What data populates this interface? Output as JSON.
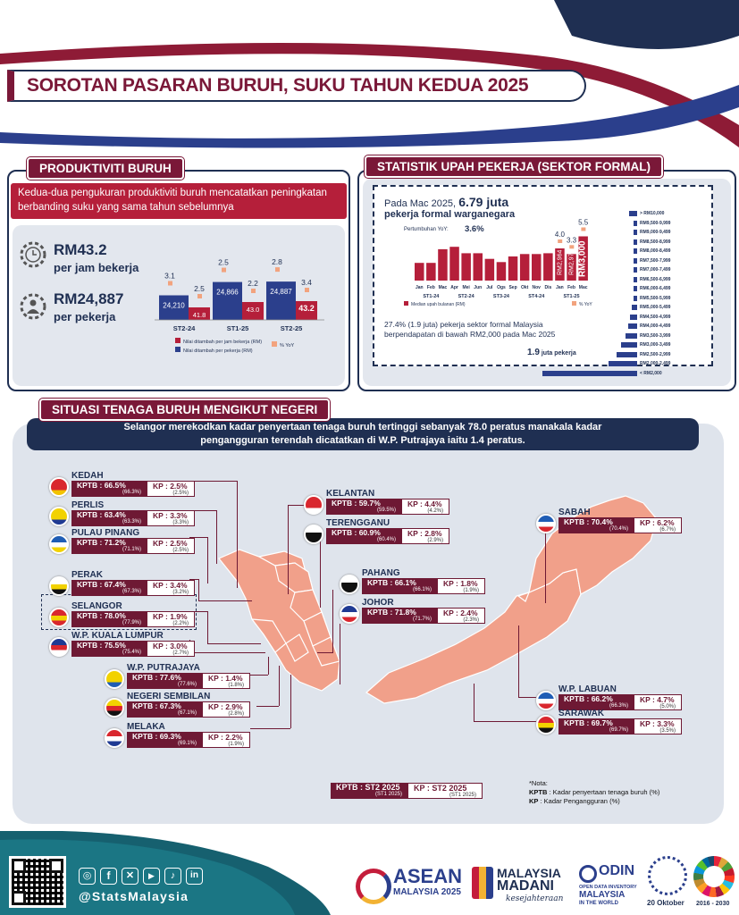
{
  "title": "SOROTAN PASARAN BURUH, SUKU TAHUN KEDUA 2025",
  "productivity": {
    "heading": "PRODUKTIVITI BURUH",
    "summary": "Kedua-dua pengukuran produktiviti buruh mencatatkan peningkatan berbanding suku yang sama tahun sebelumnya",
    "per_hour_value": "RM43.2",
    "per_hour_label": "per jam bekerja",
    "per_worker_value": "RM24,887",
    "per_worker_label": "per pekerja",
    "legend_hour": "Nilai ditambah per jam bekerja (RM)",
    "legend_worker": "Nilai ditambah per pekerja (RM)",
    "legend_yoy": "% YoY",
    "colors": {
      "worker": "#2b3f8c",
      "hour": "#b51f3a",
      "yoy": "#f2a37e"
    }
  },
  "chart_data": [
    {
      "type": "bar",
      "categories": [
        "ST2-24",
        "ST1-25",
        "ST2-25"
      ],
      "series": [
        {
          "name": "Nilai ditambah per pekerja (RM)",
          "values": [
            24210,
            24866,
            24887
          ],
          "labels": [
            "24,210",
            "24,866",
            "24,887"
          ],
          "yoy": [
            "3.1",
            "2.5",
            "2.8"
          ]
        },
        {
          "name": "Nilai ditambah per jam bekerja (RM)",
          "values": [
            41.8,
            43.0,
            43.2
          ],
          "labels": [
            "41.8",
            "43.0",
            "43.2"
          ],
          "yoy": [
            "2.5",
            "2.2",
            "3.4"
          ]
        }
      ]
    },
    {
      "type": "bar",
      "title": "Median upah bulanan (RM)",
      "categories": [
        "Jan",
        "Feb",
        "Mac",
        "Apr",
        "Mei",
        "Jun",
        "Jul",
        "Ogs",
        "Sep",
        "Okt",
        "Nov",
        "Dis",
        "Jan",
        "Feb",
        "Mac"
      ],
      "groups": [
        "ST1-24",
        "ST2-24",
        "ST3-24",
        "ST4-24",
        "ST1-25"
      ],
      "values": [
        2.2,
        2.2,
        3.9,
        4.2,
        3.4,
        3.4,
        2.7,
        2.3,
        3.0,
        3.3,
        3.3,
        3.4,
        4.0,
        3.3,
        5.5
      ],
      "value_labels": {
        "Jan-25": "RM2,964",
        "Feb-25": "RM2,975",
        "Mac-25": "RM3,000"
      },
      "yoy_labels": [
        "4.0",
        "3.3",
        "5.5"
      ],
      "yoy_legend": "Pertumbuhan YoY:",
      "yoy_value": "3.6%",
      "median_legend": "Median upah bulanan (RM)",
      "pct_legend": "% YoY"
    },
    {
      "type": "bar",
      "orientation": "horizontal",
      "categories": [
        "> RM10,000",
        "RM9,500-9,999",
        "RM9,000-9,499",
        "RM8,500-8,999",
        "RM8,000-8,499",
        "RM7,500-7,999",
        "RM7,000-7,499",
        "RM6,500-6,999",
        "RM6,000-6,499",
        "RM5,500-5,999",
        "RM5,000-5,499",
        "RM4,500-4,999",
        "RM4,000-4,499",
        "RM3,500-3,999",
        "RM3,000-3,499",
        "RM2,500-2,999",
        "RM2,000-2,499",
        "< RM2,000"
      ],
      "values": [
        0.16,
        0.02,
        0.02,
        0.02,
        0.03,
        0.03,
        0.04,
        0.05,
        0.06,
        0.08,
        0.1,
        0.14,
        0.18,
        0.24,
        0.32,
        0.42,
        0.58,
        1.9
      ]
    }
  ],
  "wage": {
    "heading": "STATISTIK UPAH PEKERJA (SEKTOR FORMAL)",
    "headline_pre": "Pada Mac 2025,",
    "headline_num": "6.79 juta",
    "headline_post": "pekerja formal warganegara",
    "note": "27.4% (1.9 juta) pekerja sektor formal Malaysia berpendapatan di bawah RM2,000 pada Mac 2025",
    "under2k_num": "1.9",
    "under2k_text": "juta pekerja"
  },
  "states": {
    "heading": "SITUASI TENAGA BURUH MENGIKUT NEGERI",
    "banner": "Selangor merekodkan kadar penyertaan tenaga buruh tertinggi sebanyak 78.0 peratus manakala kadar pengangguran terendah dicatatkan di W.P. Putrajaya iaitu 1.4 peratus.",
    "list": [
      {
        "name": "KEDAH",
        "kptb": "KPTB : 66.5%",
        "kptb_prev": "(66.3%)",
        "kp": "KP : 2.5%",
        "kp_prev": "(2.5%)"
      },
      {
        "name": "PERLIS",
        "kptb": "KPTB : 63.4%",
        "kptb_prev": "(63.3%)",
        "kp": "KP : 3.3%",
        "kp_prev": "(3.3%)"
      },
      {
        "name": "PULAU PINANG",
        "kptb": "KPTB : 71.2%",
        "kptb_prev": "(71.1%)",
        "kp": "KP : 2.5%",
        "kp_prev": "(2.5%)"
      },
      {
        "name": "PERAK",
        "kptb": "KPTB : 67.4%",
        "kptb_prev": "(67.3%)",
        "kp": "KP : 3.4%",
        "kp_prev": "(3.2%)"
      },
      {
        "name": "SELANGOR",
        "kptb": "KPTB : 78.0%",
        "kptb_prev": "(77.9%)",
        "kp": "KP : 1.9%",
        "kp_prev": "(2.2%)"
      },
      {
        "name": "W.P. KUALA LUMPUR",
        "kptb": "KPTB : 75.5%",
        "kptb_prev": "(75.4%)",
        "kp": "KP : 3.0%",
        "kp_prev": "(2.7%)"
      },
      {
        "name": "W.P. PUTRAJAYA",
        "kptb": "KPTB : 77.6%",
        "kptb_prev": "(77.6%)",
        "kp": "KP : 1.4%",
        "kp_prev": "(1.8%)"
      },
      {
        "name": "NEGERI SEMBILAN",
        "kptb": "KPTB : 67.3%",
        "kptb_prev": "(67.1%)",
        "kp": "KP : 2.9%",
        "kp_prev": "(2.8%)"
      },
      {
        "name": "MELAKA",
        "kptb": "KPTB : 69.3%",
        "kptb_prev": "(69.1%)",
        "kp": "KP : 2.2%",
        "kp_prev": "(1.9%)"
      },
      {
        "name": "KELANTAN",
        "kptb": "KPTB : 59.7%",
        "kptb_prev": "(59.5%)",
        "kp": "KP : 4.4%",
        "kp_prev": "(4.2%)"
      },
      {
        "name": "TERENGGANU",
        "kptb": "KPTB : 60.9%",
        "kptb_prev": "(60.4%)",
        "kp": "KP : 2.8%",
        "kp_prev": "(2.9%)"
      },
      {
        "name": "PAHANG",
        "kptb": "KPTB : 66.1%",
        "kptb_prev": "(66.1%)",
        "kp": "KP : 1.8%",
        "kp_prev": "(1.9%)"
      },
      {
        "name": "JOHOR",
        "kptb": "KPTB : 71.8%",
        "kptb_prev": "(71.7%)",
        "kp": "KP : 2.4%",
        "kp_prev": "(2.3%)"
      },
      {
        "name": "SABAH",
        "kptb": "KPTB : 70.4%",
        "kptb_prev": "(70.4%)",
        "kp": "KP : 6.2%",
        "kp_prev": "(6.7%)"
      },
      {
        "name": "W.P. LABUAN",
        "kptb": "KPTB : 66.2%",
        "kptb_prev": "(66.3%)",
        "kp": "KP : 4.7%",
        "kp_prev": "(5.0%)"
      },
      {
        "name": "SARAWAK",
        "kptb": "KPTB : 69.7%",
        "kptb_prev": "(69.7%)",
        "kp": "KP : 3.3%",
        "kp_prev": "(3.5%)"
      }
    ],
    "legend_kptb": "KPTB : ST2 2025",
    "legend_kptb_prev": "(ST1 2025)",
    "legend_kp": "KP : ST2 2025",
    "legend_kp_prev": "(ST1 2025)",
    "note_title": "*Nota:",
    "note_kptb_abbr": "KPTB",
    "note_kptb": " : Kadar penyertaan tenaga buruh (%)",
    "note_kp_abbr": "KP",
    "note_kp": " : Kadar Pengangguran (%)"
  },
  "footer": {
    "handle": "@StatsMalaysia",
    "asean_1": "ASEAN",
    "asean_2": "MALAYSIA 2025",
    "madani_1": "MALAYSIA",
    "madani_2": "MADANI",
    "madani_3": "kesejahteraan",
    "odin_1": "ODIN",
    "odin_2": "OPEN DATA INVENTORY",
    "odin_3": "MALAYSIA",
    "odin_4": "IN THE WORLD",
    "date": "20 Oktober",
    "years": "2016 - 2030"
  }
}
